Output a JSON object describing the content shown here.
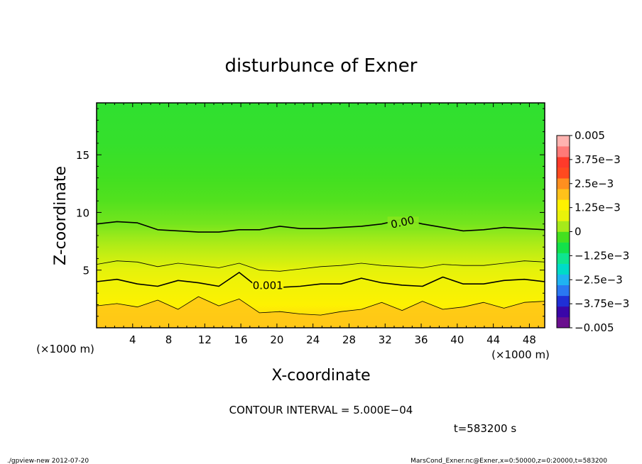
{
  "chart_data": {
    "type": "heatmap",
    "title": "disturbunce of Exner",
    "xlabel": "X-coordinate",
    "ylabel": "Z-coordinate",
    "x_unit_label": "(×1000 m)",
    "x_unit_label_left": "(×1000 m)",
    "xlim": [
      0,
      49.7
    ],
    "ylim": [
      0,
      19.5
    ],
    "xticks": [
      4,
      8,
      12,
      16,
      20,
      24,
      28,
      32,
      36,
      40,
      44,
      48
    ],
    "xtick_labels": [
      "4",
      "8",
      "12",
      "16",
      "20",
      "24",
      "28",
      "32",
      "36",
      "40",
      "44",
      "48"
    ],
    "yticks": [
      5,
      10,
      15
    ],
    "ytick_labels": [
      "5",
      "10",
      "15"
    ],
    "colorbar": {
      "min": -0.005,
      "max": 0.005,
      "tick_values": [
        0.005,
        0.00375,
        0.0025,
        0.00125,
        0,
        -0.00125,
        -0.0025,
        -0.00375,
        -0.005
      ],
      "tick_labels": [
        "0.005",
        "3.75e−3",
        "2.5e−3",
        "1.25e−3",
        "0",
        "−1.25e−3",
        "−2.5e−3",
        "−3.75e−3",
        "−0.005"
      ],
      "colors": [
        "#6a0f8e",
        "#3a06a8",
        "#1f2fd6",
        "#2a78f2",
        "#1fb3f2",
        "#00dbc8",
        "#0ee58f",
        "#13e14a",
        "#44e01f",
        "#a5ea1a",
        "#e9f20a",
        "#fff200",
        "#ffc21a",
        "#ff8f1f",
        "#ff4a1f",
        "#ff3a2a",
        "#ff7a78",
        "#ffb3b0"
      ]
    },
    "contour_labels": [
      {
        "text": "0.00",
        "x": 34,
        "z": 8.9
      },
      {
        "text": "0.001",
        "x": 19,
        "z": 3.4
      }
    ],
    "contour_interval_label": "CONTOUR INTERVAL = 5.000E−04",
    "time_label": "t=583200 s",
    "fields": {
      "bands": [
        {
          "z": 0.0,
          "value": 0.0018
        },
        {
          "z": 1.0,
          "value": 0.0016
        },
        {
          "z": 2.0,
          "value": 0.00135
        },
        {
          "z": 3.0,
          "value": 0.00115
        },
        {
          "z": 4.0,
          "value": 0.001
        },
        {
          "z": 5.0,
          "value": 0.0008
        },
        {
          "z": 6.0,
          "value": 0.0006
        },
        {
          "z": 7.0,
          "value": 0.0004
        },
        {
          "z": 8.0,
          "value": 0.0002
        },
        {
          "z": 9.0,
          "value": 0.0
        },
        {
          "z": 11.0,
          "value": -0.0002
        },
        {
          "z": 13.0,
          "value": -0.0003
        },
        {
          "z": 16.0,
          "value": -0.00045
        },
        {
          "z": 19.5,
          "value": -0.0005
        }
      ],
      "contour_0_z": [
        9.0,
        9.2,
        9.1,
        8.5,
        8.4,
        8.3,
        8.3,
        8.5,
        8.5,
        8.8,
        8.6,
        8.6,
        8.7,
        8.8,
        9.0,
        9.4,
        9.0,
        8.7,
        8.4,
        8.5,
        8.7,
        8.6,
        8.5
      ],
      "contour_0001_z": [
        4.0,
        4.2,
        3.8,
        3.6,
        4.1,
        3.9,
        3.6,
        4.8,
        3.4,
        3.5,
        3.6,
        3.8,
        3.8,
        4.3,
        3.9,
        3.7,
        3.6,
        4.4,
        3.8,
        3.8,
        4.1,
        4.2,
        4.0
      ],
      "contour_0005_z": [
        5.5,
        5.8,
        5.7,
        5.3,
        5.6,
        5.4,
        5.2,
        5.6,
        5.0,
        4.9,
        5.1,
        5.3,
        5.4,
        5.6,
        5.4,
        5.3,
        5.2,
        5.5,
        5.4,
        5.4,
        5.6,
        5.8,
        5.7
      ],
      "contour_0015_z": [
        1.9,
        2.1,
        1.8,
        2.4,
        1.6,
        2.7,
        1.9,
        2.5,
        1.3,
        1.4,
        1.2,
        1.1,
        1.4,
        1.6,
        2.2,
        1.5,
        2.3,
        1.6,
        1.8,
        2.2,
        1.7,
        2.2,
        2.3
      ]
    }
  },
  "footer": {
    "left": "./gpview-new  2012-07-20",
    "right": "MarsCond_Exner.nc@Exner,x=0:50000,z=0:20000,t=583200"
  }
}
